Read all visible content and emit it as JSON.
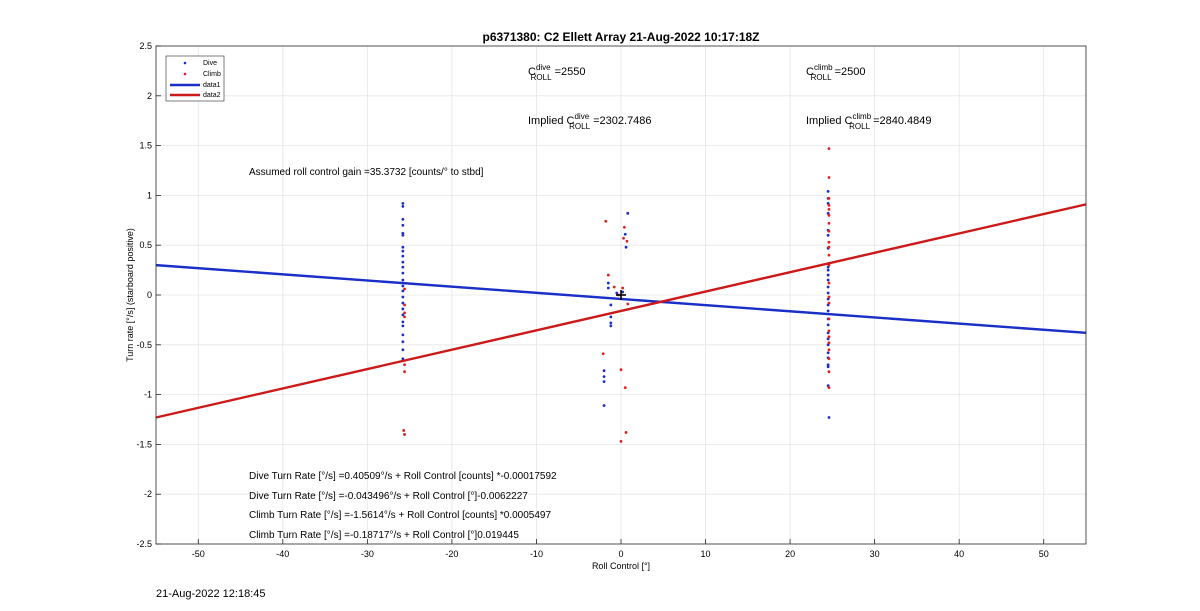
{
  "chart_data": {
    "type": "scatter",
    "title": "p6371380: C2 Ellett Array 21-Aug-2022 10:17:18Z",
    "xlabel": "Roll Control [°]",
    "ylabel": "Turn rate [°/s] (starboard positive)",
    "xlim": [
      -55,
      55
    ],
    "ylim": [
      -2.5,
      2.5
    ],
    "xticks": [
      -50,
      -40,
      -30,
      -20,
      -10,
      0,
      10,
      20,
      30,
      40,
      50
    ],
    "yticks": [
      -2.5,
      -2,
      -1.5,
      -1,
      -0.5,
      0,
      0.5,
      1,
      1.5,
      2,
      2.5
    ],
    "grid": true,
    "legend_position": "top-left",
    "colors": {
      "dive": "#1a2ec8",
      "climb": "#e0201c",
      "data1": "#1a2ec8",
      "data2": "#cc1a1a"
    },
    "series": [
      {
        "name": "Dive",
        "kind": "points",
        "points": [
          [
            -25.8,
            0.92
          ],
          [
            -25.8,
            0.89
          ],
          [
            -25.8,
            0.76
          ],
          [
            -25.8,
            0.7
          ],
          [
            -25.8,
            0.62
          ],
          [
            -25.8,
            0.6
          ],
          [
            -25.8,
            0.48
          ],
          [
            -25.8,
            0.44
          ],
          [
            -25.8,
            0.39
          ],
          [
            -25.8,
            0.33
          ],
          [
            -25.8,
            0.28
          ],
          [
            -25.8,
            0.22
          ],
          [
            -25.8,
            0.15
          ],
          [
            -25.8,
            0.09
          ],
          [
            -25.8,
            0.04
          ],
          [
            -25.8,
            -0.02
          ],
          [
            -25.8,
            -0.08
          ],
          [
            -25.8,
            -0.14
          ],
          [
            -25.8,
            -0.2
          ],
          [
            -25.8,
            -0.27
          ],
          [
            -25.8,
            -0.31
          ],
          [
            -25.8,
            -0.4
          ],
          [
            -25.8,
            -0.47
          ],
          [
            -25.8,
            -0.55
          ],
          [
            -25.8,
            -0.64
          ],
          [
            -2.0,
            -0.76
          ],
          [
            -2.0,
            -0.82
          ],
          [
            -2.0,
            -0.87
          ],
          [
            -2.0,
            -1.11
          ],
          [
            -1.5,
            0.12
          ],
          [
            -1.5,
            0.07
          ],
          [
            -1.2,
            -0.1
          ],
          [
            -1.2,
            -0.22
          ],
          [
            -1.2,
            -0.28
          ],
          [
            -1.2,
            -0.31
          ],
          [
            -0.5,
            0.02
          ],
          [
            0.2,
            0.03
          ],
          [
            0.5,
            0.61
          ],
          [
            0.6,
            0.48
          ],
          [
            0.8,
            0.82
          ],
          [
            24.5,
            1.04
          ],
          [
            24.5,
            0.97
          ],
          [
            24.5,
            0.92
          ],
          [
            24.5,
            0.82
          ],
          [
            24.5,
            0.65
          ],
          [
            24.5,
            0.6
          ],
          [
            24.5,
            0.47
          ],
          [
            24.5,
            0.28
          ],
          [
            24.5,
            0.25
          ],
          [
            24.5,
            0.2
          ],
          [
            24.5,
            0.15
          ],
          [
            24.5,
            0.08
          ],
          [
            24.5,
            0.02
          ],
          [
            24.5,
            -0.04
          ],
          [
            24.5,
            -0.1
          ],
          [
            24.5,
            -0.16
          ],
          [
            24.5,
            -0.24
          ],
          [
            24.5,
            -0.3
          ],
          [
            24.5,
            -0.38
          ],
          [
            24.5,
            -0.44
          ],
          [
            24.5,
            -0.5
          ],
          [
            24.5,
            -0.58
          ],
          [
            24.5,
            -0.63
          ],
          [
            24.5,
            -0.7
          ],
          [
            24.5,
            -0.72
          ],
          [
            24.5,
            -0.91
          ],
          [
            24.6,
            -1.23
          ]
        ]
      },
      {
        "name": "Climb",
        "kind": "points",
        "points": [
          [
            -25.6,
            0.06
          ],
          [
            -25.6,
            -0.1
          ],
          [
            -25.6,
            -0.18
          ],
          [
            -25.6,
            -0.22
          ],
          [
            -25.6,
            -0.7
          ],
          [
            -25.6,
            -0.77
          ],
          [
            -25.7,
            -1.36
          ],
          [
            -25.6,
            -1.4
          ],
          [
            -1.8,
            0.74
          ],
          [
            -2.1,
            -0.59
          ],
          [
            -1.5,
            0.2
          ],
          [
            -0.8,
            0.08
          ],
          [
            -0.3,
            0.0
          ],
          [
            0.2,
            0.07
          ],
          [
            0.3,
            0.57
          ],
          [
            0.4,
            0.68
          ],
          [
            0.7,
            0.54
          ],
          [
            0.0,
            -0.75
          ],
          [
            0.5,
            -0.93
          ],
          [
            0.0,
            -1.47
          ],
          [
            0.6,
            -1.38
          ],
          [
            0.8,
            -0.09
          ],
          [
            24.6,
            1.47
          ],
          [
            24.6,
            1.18
          ],
          [
            24.6,
            0.97
          ],
          [
            24.6,
            0.9
          ],
          [
            24.6,
            0.86
          ],
          [
            24.6,
            0.8
          ],
          [
            24.6,
            0.72
          ],
          [
            24.6,
            0.64
          ],
          [
            24.6,
            0.53
          ],
          [
            24.6,
            0.48
          ],
          [
            24.6,
            0.4
          ],
          [
            24.6,
            0.3
          ],
          [
            24.6,
            0.12
          ],
          [
            24.6,
            -0.02
          ],
          [
            24.6,
            -0.08
          ],
          [
            24.6,
            -0.24
          ],
          [
            24.6,
            -0.36
          ],
          [
            24.6,
            -0.42
          ],
          [
            24.6,
            -0.48
          ],
          [
            24.6,
            -0.55
          ],
          [
            24.6,
            -0.64
          ],
          [
            24.6,
            -0.77
          ],
          [
            24.6,
            -0.93
          ]
        ]
      },
      {
        "name": "data1",
        "kind": "line",
        "points": [
          [
            -55,
            0.3
          ],
          [
            55,
            -0.38
          ]
        ]
      },
      {
        "name": "data2",
        "kind": "line",
        "points": [
          [
            -55,
            -1.23
          ],
          [
            55,
            0.91
          ]
        ]
      }
    ],
    "marker_plus": [
      0.0,
      0.0
    ],
    "annotations": {
      "c_dive": {
        "base": "C",
        "sup": "dive",
        "sub": "ROLL",
        "rest": " =2550"
      },
      "c_climb": {
        "base": "C",
        "sup": "climb",
        "sub": "ROLL",
        "rest": " =2500"
      },
      "implied_dive": {
        "prefix": "Implied C",
        "sup": "dive",
        "sub": "ROLL",
        "rest": " =2302.7486"
      },
      "implied_climb": {
        "prefix": "Implied C",
        "sup": "climb",
        "sub": "ROLL",
        "rest": " =2840.4849"
      },
      "gain": "Assumed roll control gain =35.3732 [counts/° to stbd]",
      "eq1": "Dive Turn Rate [°/s] =0.40509°/s + Roll Control [counts] *-0.00017592",
      "eq2": "Dive Turn Rate [°/s] =-0.043496°/s + Roll Control [°]-0.0062227",
      "eq3": "Climb Turn Rate [°/s] =-1.5614°/s + Roll Control [counts] *0.0005497",
      "eq4": "Climb Turn Rate [°/s] =-0.18717°/s + Roll Control [°]0.019445"
    }
  },
  "footer_timestamp": "21-Aug-2022 12:18:45"
}
